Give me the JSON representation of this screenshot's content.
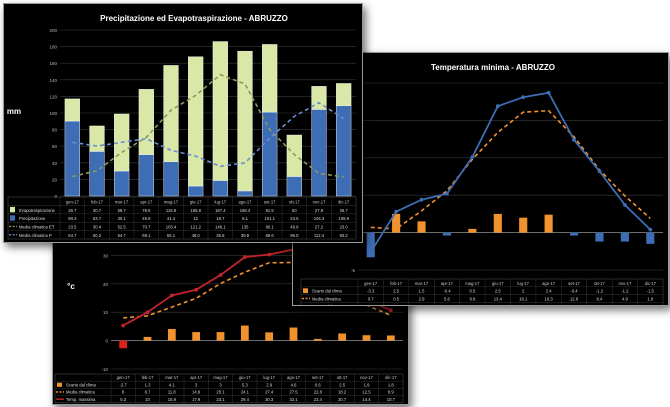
{
  "chart_data": [
    {
      "type": "bar",
      "title": "Precipitazione ed Evapotraspirazione - ABRUZZO",
      "ylabel": "mm",
      "ylim": [
        0,
        200
      ],
      "yticks": [
        "0",
        "20",
        "40",
        "60",
        "80",
        "100",
        "120",
        "140",
        "160",
        "180",
        "200"
      ],
      "categories": [
        "gen-17",
        "feb-17",
        "mar-17",
        "apr-17",
        "mag-17",
        "giu-17",
        "lug-17",
        "ago-17",
        "set-17",
        "ott-17",
        "nov-17",
        "dic-17"
      ],
      "series": [
        {
          "name": "Evapotraspirazione",
          "color": "#d9e8a6",
          "values": [
            26.7,
            30.7,
            68.7,
            78.6,
            115.9,
            155.8,
            167.4,
            168.4,
            81.5,
            50,
            27.8,
            26.7
          ],
          "labels": [
            "26.7",
            "30.7",
            "68.7",
            "78.6",
            "115.9",
            "155.8",
            "167.4",
            "168.4",
            "81.5",
            "50",
            "27.8",
            "26.7"
          ]
        },
        {
          "name": "Precipitazione",
          "color": "#3d6db4",
          "values": [
            90.3,
            53.7,
            30.1,
            49.9,
            41.4,
            12,
            18.7,
            6.1,
            101.1,
            23.5,
            104.3,
            108.9
          ],
          "labels": [
            "90.3",
            "53.7",
            "30.1",
            "49.9",
            "41.4",
            "12",
            "18.7",
            "6.1",
            "101.1",
            "23.5",
            "104.3",
            "108.9"
          ]
        },
        {
          "name": "Media climatica ET",
          "color": "#8a9a5b",
          "dash": true,
          "values": [
            23.5,
            30.4,
            52.5,
            70.7,
            103.4,
            121.2,
            146.1,
            135,
            80.1,
            49.9,
            27.2,
            23.0
          ],
          "labels": [
            "23.5",
            "30.4",
            "52.5",
            "70.7",
            "103.4",
            "121.2",
            "146.1",
            "135",
            "80.1",
            "49.9",
            "27.2",
            "23.0"
          ]
        },
        {
          "name": "Media climatica P",
          "color": "#6a8fd0",
          "dash": true,
          "values": [
            64.7,
            60.2,
            64.7,
            69.1,
            55.1,
            48.0,
            35.8,
            39.9,
            69.6,
            96.0,
            112.4,
            93.2
          ],
          "labels": [
            "64.7",
            "60.2",
            "64.7",
            "69.1",
            "55.1",
            "48.0",
            "35.8",
            "39.9",
            "69.6",
            "96.0",
            "112.4",
            "93.2"
          ]
        }
      ]
    },
    {
      "type": "line",
      "title": "Temperatura minima - ABRUZZO",
      "ylim": [
        -5,
        20
      ],
      "yticks": [
        "-5",
        "0",
        "5",
        "10",
        "15",
        "20"
      ],
      "categories": [
        "gen-17",
        "feb-17",
        "mar-17",
        "apr-17",
        "mag-17",
        "giu-17",
        "lug-17",
        "ago-17",
        "set-17",
        "ott-17",
        "nov-17",
        "dic-17"
      ],
      "series": [
        {
          "name": "Scarto dal clima",
          "type": "bar",
          "color": "#f0922e",
          "values": [
            -3.3,
            2.5,
            1.5,
            -0.4,
            0.5,
            2.5,
            2,
            2.4,
            -0.4,
            -1.2,
            -1.2,
            -1.5
          ],
          "labels": [
            "-3.3",
            "2.5",
            "1.5",
            "-0.4",
            "0.5",
            "2.5",
            "2",
            "2.4",
            "-0.4",
            "-1.2",
            "-1.2",
            "-1.5"
          ]
        },
        {
          "name": "Media climatica",
          "color": "#f0922e",
          "dash": true,
          "values": [
            0.7,
            0.5,
            2.9,
            5.6,
            9.8,
            13.4,
            16.1,
            16.3,
            12.8,
            8.4,
            4.9,
            1.9
          ],
          "labels": [
            "0.7",
            "0.5",
            "2.9",
            "5.6",
            "9.8",
            "13.4",
            "16.1",
            "16.3",
            "12.8",
            "8.4",
            "4.9",
            "1.9"
          ]
        },
        {
          "name": "Temp. minima",
          "color": "#3d6db4",
          "values": [
            -2.6,
            2.8,
            4.4,
            5.2,
            10.1,
            16.9,
            18.1,
            18.7,
            12.4,
            8.2,
            3.7,
            0.4
          ],
          "labels": [
            "-2.6",
            "2.8",
            "4.4",
            "5.2",
            "10.1",
            "16.9",
            "18.1",
            "18.7",
            "12.4",
            "8.2",
            "3.7",
            "0.4"
          ]
        }
      ]
    },
    {
      "type": "line",
      "ylabel": "°c",
      "ylim": [
        -10,
        40
      ],
      "yticks": [
        "-10",
        "0",
        "10",
        "20",
        "30",
        "40"
      ],
      "categories": [
        "gen-17",
        "feb-17",
        "mar-17",
        "apr-17",
        "mag-17",
        "giu-17",
        "lug-17",
        "ago-17",
        "set-17",
        "ott-17",
        "nov-17",
        "dic-17"
      ],
      "series": [
        {
          "name": "Scarto dal clima",
          "type": "bar",
          "color": "#f0922e",
          "values": [
            -2.7,
            1.3,
            4.1,
            3,
            3,
            5.3,
            2.9,
            4.6,
            0.6,
            2.5,
            1.9,
            1.8
          ],
          "labels": [
            "-2.7",
            "1.3",
            "4.1",
            "3",
            "3",
            "5.3",
            "2.9",
            "4.6",
            "0.6",
            "2.5",
            "1.9",
            "1.8"
          ]
        },
        {
          "name": "Media climatica",
          "color": "#f0922e",
          "dash": true,
          "values": [
            8,
            8.7,
            11.8,
            14.9,
            20.1,
            24.1,
            27.4,
            27.5,
            22.8,
            18.2,
            12.5,
            8.9
          ],
          "labels": [
            "8",
            "8.7",
            "11.8",
            "14.9",
            "20.1",
            "24.1",
            "27.4",
            "27.5",
            "22.8",
            "18.2",
            "12.5",
            "8.9"
          ]
        },
        {
          "name": "Temp. massima",
          "color": "#c0242c",
          "values": [
            5.3,
            10,
            15.9,
            17.9,
            23.1,
            29.4,
            30.3,
            32.1,
            23.4,
            20.7,
            14.4,
            10.7
          ],
          "labels": [
            "5.3",
            "10",
            "15.9",
            "17.9",
            "23.1",
            "29.4",
            "30.3",
            "32.1",
            "23.4",
            "20.7",
            "14.4",
            "10.7"
          ]
        }
      ]
    }
  ]
}
